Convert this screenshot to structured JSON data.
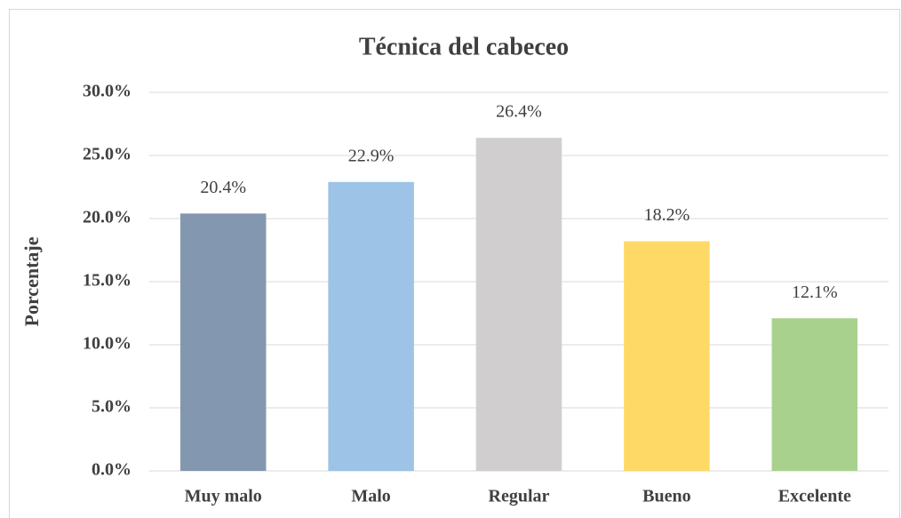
{
  "chart_data": {
    "type": "bar",
    "title": "Técnica del cabeceo",
    "y_label": "Porcentaje",
    "categories": [
      "Muy malo",
      "Malo",
      "Regular",
      "Bueno",
      "Excelente"
    ],
    "values": [
      20.4,
      22.9,
      26.4,
      18.2,
      12.1
    ],
    "value_labels": [
      "20.4%",
      "22.9%",
      "26.4%",
      "18.2%",
      "12.1%"
    ],
    "colors": [
      "#8497b0",
      "#9dc3e6",
      "#d0cece",
      "#ffd966",
      "#a9d18e"
    ],
    "ylim": [
      0,
      30
    ],
    "yticks": [
      {
        "value": 0,
        "label": "0.0%"
      },
      {
        "value": 5,
        "label": "5.0%"
      },
      {
        "value": 10,
        "label": "10.0%"
      },
      {
        "value": 15,
        "label": "15.0%"
      },
      {
        "value": 20,
        "label": "20.0%"
      },
      {
        "value": 25,
        "label": "25.0%"
      },
      {
        "value": 30,
        "label": "30.0%"
      }
    ],
    "grid": true
  }
}
